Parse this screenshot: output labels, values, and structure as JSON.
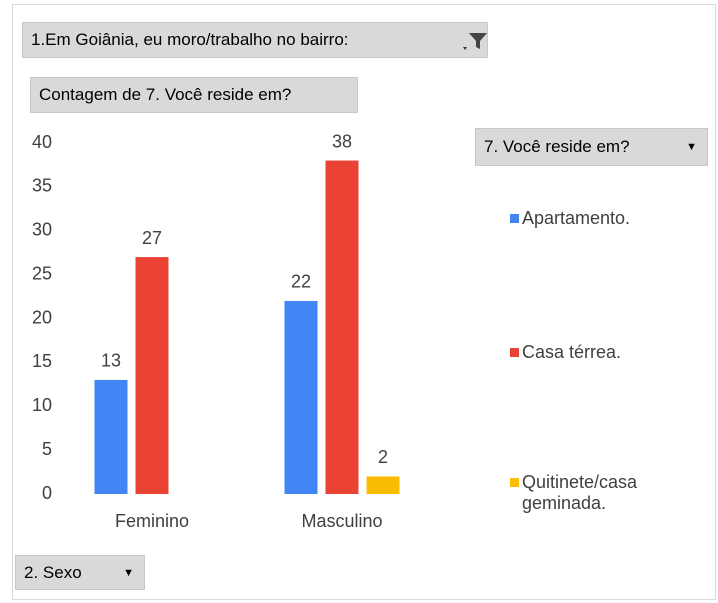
{
  "chart_data": {
    "type": "bar",
    "report_filter": "1.Em Goiânia, eu moro/trabalho no bairro:",
    "values_field": "Contagem de 7. Você reside em?",
    "legend_field": "7. Você reside em?",
    "axis_field": "2. Sexo",
    "categories": [
      "Feminino",
      "Masculino"
    ],
    "series": [
      {
        "name": "Apartamento.",
        "color": "#4285f4",
        "values": [
          13,
          22
        ]
      },
      {
        "name": "Casa térrea.",
        "color": "#ea4335",
        "values": [
          27,
          38
        ]
      },
      {
        "name": "Quitinete/casa geminada.",
        "color": "#fbbc04",
        "values": [
          null,
          2
        ]
      }
    ],
    "ylim": [
      0,
      40
    ],
    "yticks": [
      0,
      5,
      10,
      15,
      20,
      25,
      30,
      35,
      40
    ],
    "grid": false,
    "legend": "right"
  }
}
